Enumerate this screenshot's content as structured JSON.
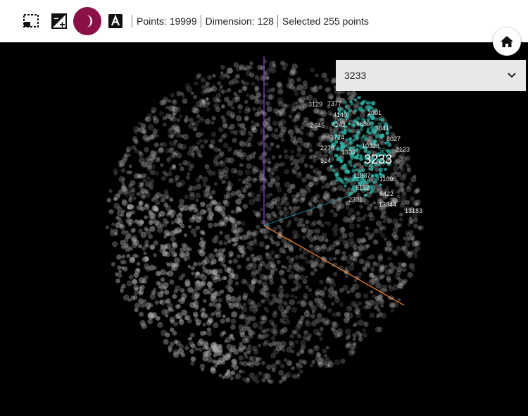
{
  "toolbar": {
    "tools": [
      {
        "name": "box-select-tool",
        "icon": "selection-rectangle-icon",
        "active": false
      },
      {
        "name": "contrast-tool",
        "icon": "contrast-icon",
        "active": false
      },
      {
        "name": "night-mode-tool",
        "icon": "moon-icon",
        "active": true
      },
      {
        "name": "labels-tool",
        "icon": "letter-a-icon",
        "active": false
      }
    ],
    "stats": {
      "points": "Points: 19999",
      "dimension": "Dimension: 128",
      "selected": "Selected 255 points"
    },
    "home_icon": "home-icon"
  },
  "search": {
    "value": "3233",
    "icon": "chevron-down-icon"
  },
  "colors": {
    "accent": "#8a1047",
    "background": "#000000",
    "point": "#bbbbbb",
    "selected_point": "#2bb5a8",
    "axis_y": "#a040d0",
    "axis_x": "#ff8a30",
    "axis_z": "#2aa7c8"
  },
  "plot": {
    "focus_label": "3233",
    "point_labels": [
      "3129",
      "7377",
      "4140",
      "2001",
      "2645",
      "4242",
      "5650",
      "3841",
      "3724",
      "8027",
      "2278",
      "10328",
      "2123",
      "1333",
      "924",
      "11837",
      "11096",
      "6152",
      "6422",
      "2301",
      "13844",
      "13183"
    ]
  }
}
